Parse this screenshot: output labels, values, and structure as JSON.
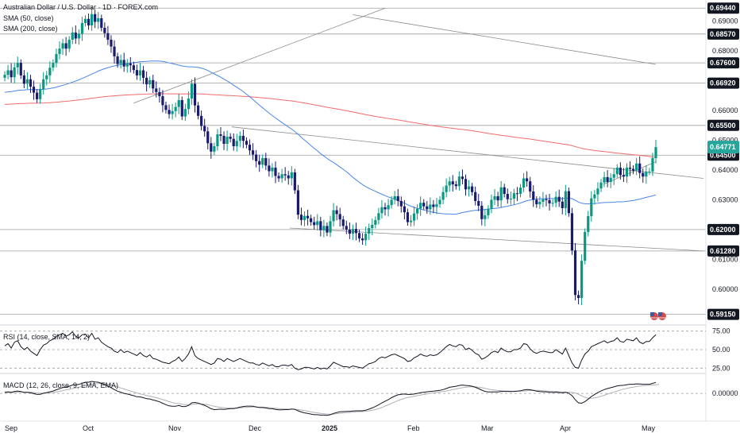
{
  "header": {
    "title": "Australian Dollar / U.S. Dollar · 1D · FOREX.com",
    "sma50_label": "SMA (50, close)",
    "sma200_label": "SMA (200, close)"
  },
  "indicators": {
    "rsi_label": "RSI (14, close, SMA, 14, 2)",
    "macd_label": "MACD (12, 26, close, 9, EMA, EMA)"
  },
  "colors": {
    "up": "#089981",
    "down": "#1a1a6e",
    "sma50": "#4a86e8",
    "sma200": "#f26b6b",
    "level": "#9e9e9e",
    "price_tag": "#26a69a",
    "rsi": "#131722",
    "macd": "#131722",
    "signal": "#b0b0b0"
  },
  "chart_data": [
    {
      "type": "candlestick",
      "title": "Australian Dollar / U.S. Dollar · 1D · FOREX.com",
      "x_ticks": [
        "Sep",
        "Oct",
        "Nov",
        "Dec",
        "2025",
        "Feb",
        "Mar",
        "Apr",
        "May"
      ],
      "y_ticks": [
        0.69,
        0.68,
        0.67,
        0.66,
        0.65,
        0.64,
        0.63,
        0.61,
        0.6
      ],
      "ylim": [
        0.589,
        0.695
      ],
      "levels": [
        0.6944,
        0.6857,
        0.676,
        0.6692,
        0.655,
        0.645,
        0.62,
        0.6128,
        0.5915
      ],
      "level_labels": [
        "0.69440",
        "0.68570",
        "0.67600",
        "0.66920",
        "0.65500",
        "0.64500",
        "0.62000",
        "0.61280",
        "0.59150"
      ],
      "last_price": 0.64771,
      "last_price_label": "0.64771",
      "closes": [
        0.672,
        0.6735,
        0.6712,
        0.6745,
        0.676,
        0.6718,
        0.669,
        0.6705,
        0.668,
        0.666,
        0.6638,
        0.6672,
        0.6705,
        0.6718,
        0.6744,
        0.676,
        0.679,
        0.6808,
        0.6826,
        0.6808,
        0.6838,
        0.6862,
        0.6842,
        0.6858,
        0.6894,
        0.6908,
        0.6886,
        0.6924,
        0.6898,
        0.691,
        0.6878,
        0.686,
        0.6838,
        0.6815,
        0.6782,
        0.6756,
        0.677,
        0.6748,
        0.6758,
        0.6752,
        0.6736,
        0.6718,
        0.6735,
        0.671,
        0.6688,
        0.6702,
        0.6674,
        0.6662,
        0.6648,
        0.6618,
        0.6602,
        0.6588,
        0.6598,
        0.6612,
        0.6635,
        0.658,
        0.6605,
        0.664,
        0.669,
        0.6617,
        0.6582,
        0.6548,
        0.653,
        0.649,
        0.6462,
        0.648,
        0.652,
        0.6515,
        0.6488,
        0.6512,
        0.6505,
        0.648,
        0.6498,
        0.6515,
        0.6498,
        0.6485,
        0.6466,
        0.6452,
        0.643,
        0.6418,
        0.644,
        0.6415,
        0.6396,
        0.6408,
        0.638,
        0.6372,
        0.6386,
        0.6382,
        0.6372,
        0.6392,
        0.6332,
        0.625,
        0.6232,
        0.6246,
        0.6238,
        0.6225,
        0.6215,
        0.6228,
        0.6198,
        0.6212,
        0.619,
        0.6228,
        0.6265,
        0.6252,
        0.6234,
        0.6212,
        0.62,
        0.6186,
        0.6202,
        0.6188,
        0.617,
        0.6164,
        0.6186,
        0.6205,
        0.6216,
        0.6232,
        0.6255,
        0.6275,
        0.6268,
        0.6282,
        0.63,
        0.6312,
        0.6296,
        0.6278,
        0.6258,
        0.6225,
        0.623,
        0.6254,
        0.627,
        0.629,
        0.6278,
        0.6268,
        0.6284,
        0.6276,
        0.6285,
        0.63,
        0.6326,
        0.6348,
        0.6362,
        0.6352,
        0.6346,
        0.6378,
        0.637,
        0.6335,
        0.6345,
        0.6326,
        0.6296,
        0.628,
        0.6235,
        0.6248,
        0.627,
        0.63,
        0.6312,
        0.6298,
        0.6342,
        0.632,
        0.6302,
        0.6304,
        0.6322,
        0.632,
        0.6341,
        0.6372,
        0.6362,
        0.6328,
        0.63,
        0.6285,
        0.6293,
        0.6302,
        0.6299,
        0.6288,
        0.629,
        0.631,
        0.6294,
        0.6272,
        0.6329,
        0.6255,
        0.613,
        0.598,
        0.597,
        0.6095,
        0.6192,
        0.6245,
        0.6305,
        0.6318,
        0.6338,
        0.6358,
        0.6376,
        0.636,
        0.6374,
        0.6386,
        0.6408,
        0.6383,
        0.6378,
        0.6408,
        0.6404,
        0.6398,
        0.6422,
        0.639,
        0.6378,
        0.6395,
        0.6395,
        0.644,
        0.6477
      ]
    },
    {
      "type": "line",
      "title": "RSI (14, close, SMA, 14, 2)",
      "y_ticks": [
        75.0,
        50.0,
        25.0
      ],
      "y_tick_labels": [
        "75.00",
        "50.00",
        "25.00"
      ],
      "ylim": [
        20,
        80
      ],
      "series": [
        {
          "values": [
            55,
            58,
            52,
            60,
            62,
            54,
            50,
            53,
            48,
            45,
            42,
            50,
            56,
            58,
            62,
            64,
            68,
            70,
            72,
            68,
            70,
            74,
            68,
            66,
            70,
            71,
            66,
            72,
            64,
            66,
            60,
            57,
            54,
            52,
            48,
            46,
            50,
            46,
            48,
            46,
            44,
            42,
            46,
            42,
            40,
            43,
            38,
            37,
            35,
            33,
            32,
            31,
            34,
            36,
            40,
            34,
            38,
            44,
            54,
            42,
            38,
            36,
            34,
            32,
            30,
            32,
            38,
            37,
            34,
            38,
            36,
            34,
            36,
            38,
            36,
            34,
            32,
            32,
            30,
            29,
            32,
            30,
            28,
            30,
            27,
            27,
            29,
            29,
            28,
            30,
            25,
            23,
            24,
            26,
            26,
            25,
            24,
            26,
            24,
            25,
            24,
            28,
            33,
            31,
            29,
            27,
            27,
            26,
            28,
            27,
            26,
            25,
            28,
            31,
            32,
            34,
            38,
            40,
            39,
            41,
            43,
            44,
            42,
            40,
            38,
            34,
            35,
            39,
            41,
            44,
            42,
            41,
            43,
            42,
            43,
            46,
            50,
            54,
            57,
            55,
            54,
            57,
            56,
            50,
            52,
            49,
            45,
            43,
            37,
            39,
            42,
            46,
            48,
            46,
            52,
            49,
            47,
            47,
            50,
            50,
            52,
            58,
            57,
            51,
            47,
            45,
            47,
            48,
            47,
            46,
            46,
            50,
            47,
            44,
            52,
            42,
            32,
            26,
            25,
            36,
            44,
            48,
            54,
            56,
            58,
            60,
            62,
            59,
            61,
            62,
            66,
            61,
            60,
            64,
            63,
            62,
            66,
            60,
            58,
            61,
            61,
            66,
            70
          ]
        }
      ]
    },
    {
      "type": "line",
      "title": "MACD (12, 26, close, 9, EMA, EMA)",
      "y_ticks": [
        0.0
      ],
      "y_tick_labels": [
        "0.00000"
      ],
      "ylim": [
        -0.012,
        0.009
      ],
      "series": [
        {
          "values": [
            0.0006,
            0.0008,
            0.0006,
            0.0009,
            0.0012,
            0.0009,
            0.0005,
            0.0006,
            0.0003,
            -0.0001,
            -0.0005,
            -0.0004,
            0.0001,
            0.0004,
            0.0008,
            0.0012,
            0.0018,
            0.0023,
            0.0029,
            0.003,
            0.0035,
            0.0041,
            0.0042,
            0.0044,
            0.005,
            0.0055,
            0.0055,
            0.0059,
            0.0056,
            0.0055,
            0.0049,
            0.0043,
            0.0036,
            0.0028,
            0.0019,
            0.0011,
            0.0006,
            0.0,
            -0.0003,
            -0.0007,
            -0.0011,
            -0.0016,
            -0.0017,
            -0.0021,
            -0.0026,
            -0.0027,
            -0.0032,
            -0.0036,
            -0.0041,
            -0.0048,
            -0.0055,
            -0.0061,
            -0.0063,
            -0.0063,
            -0.0059,
            -0.0064,
            -0.0064,
            -0.0059,
            -0.0046,
            -0.0044,
            -0.0047,
            -0.0053,
            -0.0058,
            -0.0066,
            -0.0075,
            -0.0079,
            -0.0078,
            -0.0077,
            -0.0078,
            -0.0076,
            -0.0074,
            -0.0074,
            -0.0071,
            -0.0067,
            -0.0064,
            -0.0062,
            -0.0062,
            -0.0063,
            -0.0066,
            -0.0069,
            -0.0069,
            -0.0071,
            -0.0074,
            -0.0075,
            -0.0078,
            -0.008,
            -0.008,
            -0.0079,
            -0.0079,
            -0.0076,
            -0.0078,
            -0.0085,
            -0.0091,
            -0.0095,
            -0.0098,
            -0.0101,
            -0.0104,
            -0.0104,
            -0.0106,
            -0.0106,
            -0.0107,
            -0.0104,
            -0.0098,
            -0.0093,
            -0.009,
            -0.0089,
            -0.0088,
            -0.0088,
            -0.0086,
            -0.0085,
            -0.0085,
            -0.0085,
            -0.0082,
            -0.0077,
            -0.0071,
            -0.0064,
            -0.0056,
            -0.0046,
            -0.0038,
            -0.003,
            -0.0021,
            -0.0013,
            -0.0007,
            -0.0004,
            -0.0003,
            -0.0005,
            -0.0005,
            -0.0003,
            0.0,
            0.0004,
            0.0006,
            0.0008,
            0.001,
            0.0011,
            0.0013,
            0.0015,
            0.0019,
            0.0024,
            0.003,
            0.0033,
            0.0035,
            0.0039,
            0.0041,
            0.0039,
            0.0038,
            0.0035,
            0.003,
            0.0024,
            0.0016,
            0.001,
            0.0007,
            0.0007,
            0.0007,
            0.0007,
            0.001,
            0.001,
            0.001,
            0.0009,
            0.001,
            0.0011,
            0.0013,
            0.0017,
            0.0019,
            0.0018,
            0.0015,
            0.0011,
            0.0009,
            0.0008,
            0.0008,
            0.0006,
            0.0005,
            0.0006,
            0.0005,
            0.0003,
            0.0006,
            0.0001,
            -0.0011,
            -0.0031,
            -0.0046,
            -0.0048,
            -0.004,
            -0.0028,
            -0.0015,
            -0.0005,
            0.0004,
            0.0012,
            0.0019,
            0.0024,
            0.0028,
            0.0032,
            0.0037,
            0.0039,
            0.004,
            0.0043,
            0.0045,
            0.0045,
            0.0047,
            0.0046,
            0.0045,
            0.0045,
            0.0045,
            0.0049,
            0.0054
          ]
        },
        {
          "values": [
            0.0003,
            0.0004,
            0.0004,
            0.0005,
            0.0006,
            0.0007,
            0.0006,
            0.0006,
            0.0006,
            0.0004,
            0.0002,
            0.0001,
            0.0001,
            0.0002,
            0.0003,
            0.0005,
            0.0007,
            0.001,
            0.0014,
            0.0017,
            0.002,
            0.0024,
            0.0027,
            0.003,
            0.0034,
            0.0038,
            0.0041,
            0.0045,
            0.0047,
            0.0048,
            0.0049,
            0.0047,
            0.0045,
            0.0041,
            0.0037,
            0.0032,
            0.0027,
            0.0022,
            0.0017,
            0.0012,
            0.0007,
            0.0002,
            -0.0002,
            -0.0006,
            -0.001,
            -0.0013,
            -0.0017,
            -0.0021,
            -0.0025,
            -0.003,
            -0.0035,
            -0.004,
            -0.0045,
            -0.0048,
            -0.005,
            -0.0053,
            -0.0055,
            -0.0056,
            -0.0054,
            -0.0052,
            -0.0051,
            -0.0051,
            -0.0053,
            -0.0055,
            -0.0059,
            -0.0063,
            -0.0066,
            -0.0068,
            -0.007,
            -0.0071,
            -0.0072,
            -0.0072,
            -0.0072,
            -0.0071,
            -0.0069,
            -0.0068,
            -0.0067,
            -0.0066,
            -0.0066,
            -0.0067,
            -0.0067,
            -0.0068,
            -0.0069,
            -0.0071,
            -0.0072,
            -0.0074,
            -0.0075,
            -0.0076,
            -0.0077,
            -0.0077,
            -0.0077,
            -0.0079,
            -0.0081,
            -0.0084,
            -0.0087,
            -0.009,
            -0.0093,
            -0.0095,
            -0.0098,
            -0.0099,
            -0.0101,
            -0.0102,
            -0.0101,
            -0.0099,
            -0.0098,
            -0.0096,
            -0.0094,
            -0.0093,
            -0.0092,
            -0.009,
            -0.0089,
            -0.0089,
            -0.0087,
            -0.0085,
            -0.0082,
            -0.0079,
            -0.0074,
            -0.0069,
            -0.0062,
            -0.0056,
            -0.0049,
            -0.0042,
            -0.0035,
            -0.0029,
            -0.0024,
            -0.002,
            -0.0017,
            -0.0014,
            -0.0011,
            -0.0008,
            -0.0005,
            -0.0002,
            0.0001,
            0.0003,
            0.0005,
            0.0007,
            0.0009,
            0.0012,
            0.0015,
            0.0019,
            0.0022,
            0.0025,
            0.0028,
            0.003,
            0.0032,
            0.0033,
            0.0033,
            0.0031,
            0.0028,
            0.0025,
            0.0021,
            0.0018,
            0.0016,
            0.0014,
            0.0013,
            0.0012,
            0.0012,
            0.0011,
            0.0011,
            0.0011,
            0.0011,
            0.0012,
            0.0013,
            0.0014,
            0.0015,
            0.0015,
            0.0014,
            0.0013,
            0.0012,
            0.0011,
            0.001,
            0.0009,
            0.0008,
            0.0007,
            0.0006,
            0.0006,
            0.0005,
            0.0002,
            -0.0004,
            -0.0012,
            -0.0019,
            -0.0023,
            -0.0024,
            -0.0022,
            -0.0019,
            -0.0014,
            -0.0009,
            -0.0003,
            0.0002,
            0.0007,
            0.0012,
            0.0017,
            0.0021,
            0.0025,
            0.0028,
            0.0031,
            0.0034,
            0.0036,
            0.0038,
            0.0039,
            0.004,
            0.0041,
            0.0042,
            0.0044
          ]
        }
      ]
    }
  ]
}
